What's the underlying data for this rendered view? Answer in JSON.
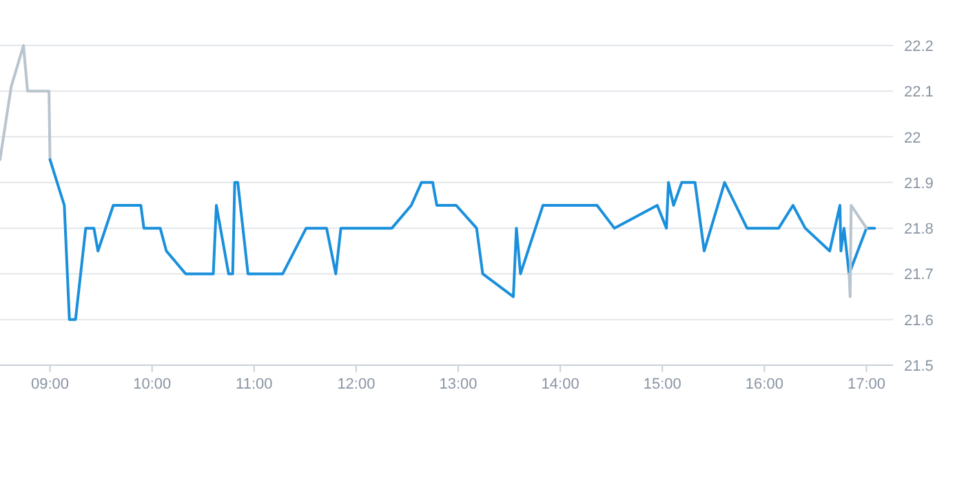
{
  "chart_data": {
    "type": "line",
    "xlim": [
      8.51,
      17.26
    ],
    "ylim": [
      21.5,
      22.2
    ],
    "xticks": [
      {
        "value": 9,
        "label": "09:00"
      },
      {
        "value": 10,
        "label": "10:00"
      },
      {
        "value": 11,
        "label": "11:00"
      },
      {
        "value": 12,
        "label": "12:00"
      },
      {
        "value": 13,
        "label": "13:00"
      },
      {
        "value": 14,
        "label": "14:00"
      },
      {
        "value": 15,
        "label": "15:00"
      },
      {
        "value": 16,
        "label": "16:00"
      },
      {
        "value": 17,
        "label": "17:00"
      }
    ],
    "yticks": [
      21.5,
      21.6,
      21.7,
      21.8,
      21.9,
      {
        "value": 22,
        "label": "22"
      },
      22.1,
      22.2
    ],
    "grid": "y",
    "marker": "none",
    "line_style": "solid",
    "series": [
      {
        "color": "#b8c4ce",
        "x": [
          8.51,
          8.62,
          8.74,
          8.78,
          8.99,
          9.0
        ],
        "values": [
          21.95,
          22.11,
          22.2,
          22.1,
          22.1,
          21.95
        ]
      },
      {
        "color": "#1a90dc",
        "x": [
          9.0,
          9.14,
          9.19,
          9.25,
          9.35,
          9.43,
          9.47,
          9.62,
          9.89,
          9.92,
          10.08,
          10.14,
          10.33,
          10.6,
          10.63,
          10.75,
          10.79,
          10.81,
          10.84,
          10.94,
          11.28,
          11.51,
          11.71,
          11.8,
          11.85,
          12.35,
          12.54,
          12.64,
          12.75,
          12.79,
          12.98,
          13.18,
          13.24,
          13.54,
          13.57,
          13.61,
          13.83,
          14.36,
          14.53,
          14.95,
          15.04,
          15.06,
          15.11,
          15.19,
          15.32,
          15.41,
          15.61,
          15.83,
          16.14,
          16.28,
          16.4,
          16.64,
          16.74,
          16.75,
          16.78,
          16.83,
          17.0,
          17.08
        ],
        "values": [
          21.95,
          21.85,
          21.6,
          21.6,
          21.8,
          21.8,
          21.75,
          21.85,
          21.85,
          21.8,
          21.8,
          21.75,
          21.7,
          21.7,
          21.85,
          21.7,
          21.7,
          21.9,
          21.9,
          21.7,
          21.7,
          21.8,
          21.8,
          21.7,
          21.8,
          21.8,
          21.85,
          21.9,
          21.9,
          21.85,
          21.85,
          21.8,
          21.7,
          21.65,
          21.8,
          21.7,
          21.85,
          21.85,
          21.8,
          21.85,
          21.8,
          21.9,
          21.85,
          21.9,
          21.9,
          21.75,
          21.9,
          21.8,
          21.8,
          21.85,
          21.8,
          21.75,
          21.85,
          21.75,
          21.8,
          21.7,
          21.8,
          21.8
        ]
      },
      {
        "color": "#b8c4ce",
        "x": [
          16.83,
          16.84,
          16.85,
          17.0
        ],
        "values": [
          21.7,
          21.65,
          21.85,
          21.8
        ]
      }
    ]
  }
}
